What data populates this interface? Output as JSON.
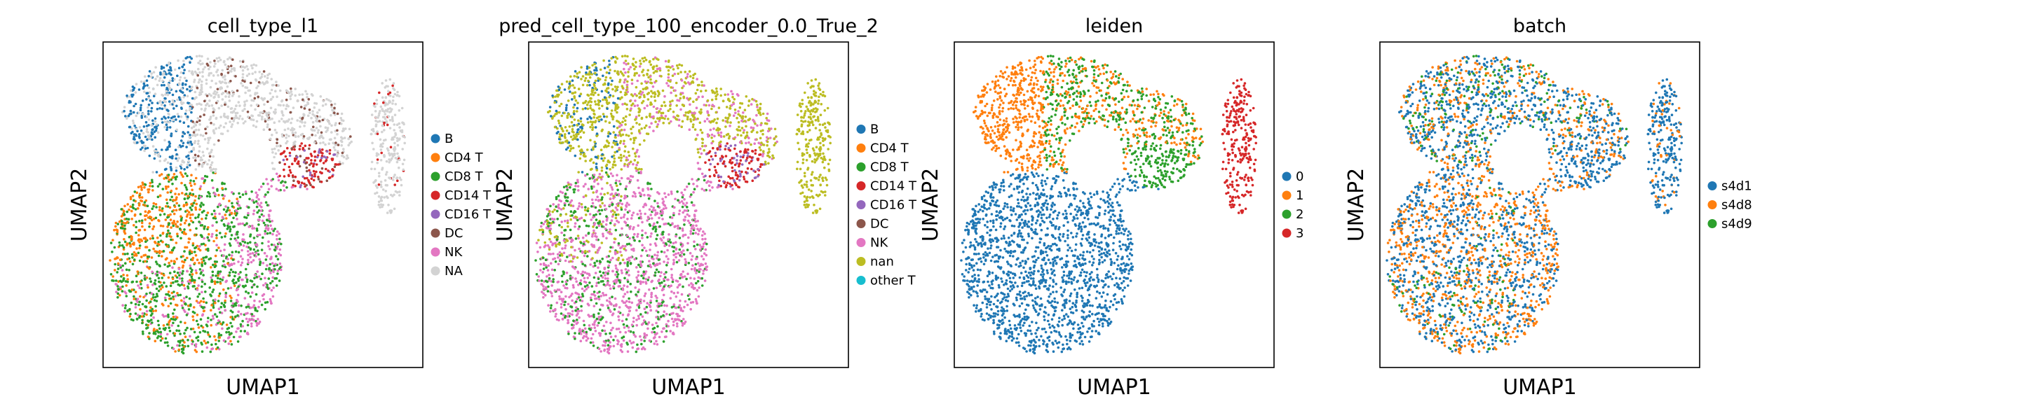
{
  "chart_data": [
    {
      "type": "scatter",
      "title": "cell_type_l1",
      "xlabel": "UMAP1",
      "ylabel": "UMAP2",
      "xticks": [],
      "yticks": [],
      "grid": false,
      "legend_position": "right",
      "series": [
        {
          "name": "B",
          "color": "#1f77b4"
        },
        {
          "name": "CD4 T",
          "color": "#ff7f0e"
        },
        {
          "name": "CD8 T",
          "color": "#2ca02c"
        },
        {
          "name": "CD14 T",
          "color": "#d62728"
        },
        {
          "name": "CD16 T",
          "color": "#9467bd"
        },
        {
          "name": "DC",
          "color": "#8c564b"
        },
        {
          "name": "NK",
          "color": "#e377c2"
        },
        {
          "name": "NA",
          "color": "#d3d3d3"
        }
      ]
    },
    {
      "type": "scatter",
      "title": "pred_cell_type_100_encoder_0.0_True_2",
      "xlabel": "UMAP1",
      "ylabel": "UMAP2",
      "xticks": [],
      "yticks": [],
      "grid": false,
      "legend_position": "right",
      "series": [
        {
          "name": "B",
          "color": "#1f77b4"
        },
        {
          "name": "CD4 T",
          "color": "#ff7f0e"
        },
        {
          "name": "CD8 T",
          "color": "#2ca02c"
        },
        {
          "name": "CD14 T",
          "color": "#d62728"
        },
        {
          "name": "CD16 T",
          "color": "#9467bd"
        },
        {
          "name": "DC",
          "color": "#8c564b"
        },
        {
          "name": "NK",
          "color": "#e377c2"
        },
        {
          "name": "nan",
          "color": "#bcbd22"
        },
        {
          "name": "other T",
          "color": "#17becf"
        }
      ]
    },
    {
      "type": "scatter",
      "title": "leiden",
      "xlabel": "UMAP1",
      "ylabel": "UMAP2",
      "xticks": [],
      "yticks": [],
      "grid": false,
      "legend_position": "right",
      "series": [
        {
          "name": "0",
          "color": "#1f77b4"
        },
        {
          "name": "1",
          "color": "#ff7f0e"
        },
        {
          "name": "2",
          "color": "#2ca02c"
        },
        {
          "name": "3",
          "color": "#d62728"
        }
      ]
    },
    {
      "type": "scatter",
      "title": "batch",
      "xlabel": "UMAP1",
      "ylabel": "UMAP2",
      "xticks": [],
      "yticks": [],
      "grid": false,
      "legend_position": "right",
      "series": [
        {
          "name": "s4d1",
          "color": "#1f77b4"
        },
        {
          "name": "s4d8",
          "color": "#ff7f0e"
        },
        {
          "name": "s4d9",
          "color": "#2ca02c"
        }
      ]
    }
  ]
}
